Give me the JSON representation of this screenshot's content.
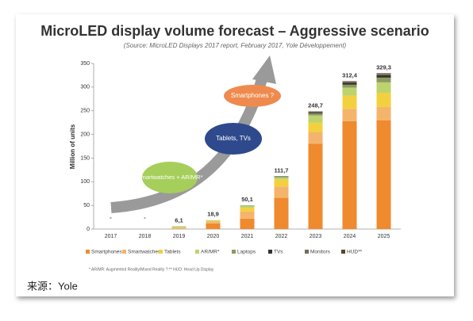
{
  "chart_data": {
    "type": "bar",
    "title": "MicroLED display volume forecast – Aggressive scenario",
    "subtitle": "(Source: MicroLED Displays 2017 report, February 2017, Yole Développement)",
    "y_label": "Million of units",
    "categories": [
      "2017",
      "2018",
      "2019",
      "2020",
      "2021",
      "2022",
      "2023",
      "2024",
      "2025"
    ],
    "series": [
      {
        "name": "Smartphones",
        "color": "#ef8a2e",
        "values": [
          0,
          0,
          0,
          12,
          22,
          66,
          180,
          228,
          230
        ]
      },
      {
        "name": "Smartwatches",
        "color": "#f4b46c",
        "values": [
          0,
          0,
          3,
          4,
          15,
          24,
          25,
          26,
          28
        ]
      },
      {
        "name": "Tablets",
        "color": "#f3d03e",
        "values": [
          0,
          0,
          0,
          1,
          8,
          15,
          20,
          28,
          30
        ]
      },
      {
        "name": "AR/MR*",
        "color": "#bcd36e",
        "values": [
          0,
          0,
          3.1,
          1.9,
          4,
          4,
          15,
          17,
          22
        ]
      },
      {
        "name": "Laptops",
        "color": "#8c9a60",
        "values": [
          0,
          0,
          0,
          0,
          1.1,
          2,
          4,
          6,
          10
        ]
      },
      {
        "name": "TVs",
        "color": "#333333",
        "values": [
          0,
          0,
          0,
          0,
          0,
          0.7,
          2,
          4,
          5
        ]
      },
      {
        "name": "Monitors",
        "color": "#7a6a58",
        "values": [
          0,
          0,
          0,
          0,
          0,
          0,
          2,
          2,
          3
        ]
      },
      {
        "name": "HUD**",
        "color": "#5a4526",
        "values": [
          0,
          0,
          0,
          0,
          0,
          0,
          0.7,
          1.4,
          1.3
        ]
      }
    ],
    "totals": [
      null,
      null,
      6.1,
      18.9,
      50.1,
      111.7,
      248.7,
      312.4,
      329.3
    ],
    "total_labels": [
      "-",
      "-",
      "6,1",
      "18,9",
      "50,1",
      "111,7",
      "248,7",
      "312,4",
      "329,3"
    ],
    "ylim": [
      0,
      350
    ],
    "yticks": [
      0,
      50,
      100,
      150,
      200,
      250,
      300,
      350
    ],
    "grid": false,
    "annotations": [
      "Smartphones ?",
      "Tablets, TVs",
      "Smartwatches + AR/MR*"
    ],
    "footnote": "* AR/MR: Augmented Reality/Mixed Reality ? ** HUD: Head Up Display"
  },
  "caption": "来源：Yole"
}
